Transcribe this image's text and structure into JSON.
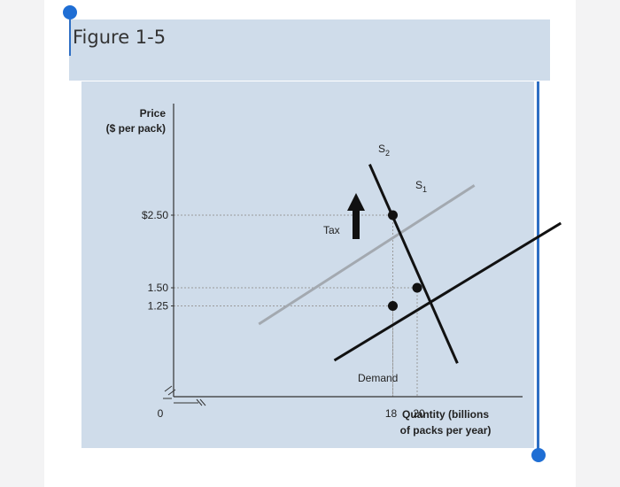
{
  "title": "Figure 1-5",
  "chart_data": {
    "type": "line",
    "ylabel": [
      "Price",
      "($ per pack)"
    ],
    "xlabel": [
      "Quantity (billions",
      "of packs per year)"
    ],
    "origin_label": "0",
    "y_ticks": [
      {
        "value": 2.5,
        "label": "$2.50"
      },
      {
        "value": 1.5,
        "label": "1.50"
      },
      {
        "value": 1.25,
        "label": "1.25"
      }
    ],
    "x_ticks": [
      {
        "value": 18,
        "label": "18"
      },
      {
        "value": 20,
        "label": "20"
      }
    ],
    "series": [
      {
        "name": "S2",
        "color": "#a3a9b0",
        "x": [
          7.0,
          24.7
        ],
        "y": [
          1.0,
          2.91
        ]
      },
      {
        "name": "S1",
        "color": "#111111",
        "x": [
          13.2,
          31.8
        ],
        "y": [
          0.5,
          2.39
        ]
      },
      {
        "name": "Demand",
        "color": "#111111",
        "x": [
          16.1,
          23.3
        ],
        "y": [
          3.2,
          0.46
        ]
      }
    ],
    "series_labels": [
      {
        "series": "S2",
        "letter": "S",
        "sub": "2"
      },
      {
        "series": "S1",
        "letter": "S",
        "sub": "1"
      },
      {
        "series": "Demand",
        "text": "Demand"
      }
    ],
    "points": [
      {
        "x": 18,
        "y": 2.5
      },
      {
        "x": 20,
        "y": 1.5
      },
      {
        "x": 18,
        "y": 1.25
      }
    ],
    "guides": [
      {
        "x": 18,
        "y": 2.5
      },
      {
        "x": 20,
        "y": 1.5
      },
      {
        "x": 18,
        "y": 1.25
      }
    ],
    "annotation": {
      "text": "Tax",
      "arrow": "up"
    },
    "colors": {
      "panel": "#cfdcea",
      "axis": "#333333",
      "guide": "#9a9a9a",
      "arrow": "#111111"
    }
  }
}
